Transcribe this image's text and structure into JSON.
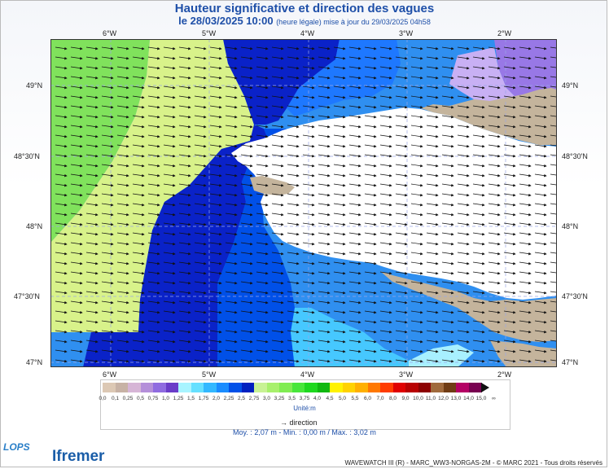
{
  "title": "Hauteur significative et direction des vagues",
  "subtitle": {
    "date": "le 28/03/2025 10:00",
    "note": "(heure légale) mise à jour du 29/03/2025 04h58"
  },
  "map": {
    "lon_ticks": [
      "6°W",
      "5°W",
      "4°W",
      "3°W",
      "2°W"
    ],
    "lat_ticks": [
      "49°N",
      "48°30'N",
      "48°N",
      "47°30'N",
      "47°N"
    ],
    "lon_range": [
      -6.55,
      -1.55
    ],
    "lat_range": [
      46.98,
      49.32
    ],
    "land_color": "#c4b49c",
    "sea_mask_color": "#ffffff",
    "wave_direction": "towards east (slightly south)"
  },
  "legend": {
    "labels": [
      "0,0",
      "0,1",
      "0,25",
      "0,5",
      "0,75",
      "1,0",
      "1,25",
      "1,5",
      "1,75",
      "2,0",
      "2,25",
      "2,5",
      "2,75",
      "3,0",
      "3,25",
      "3,5",
      "3,75",
      "4,0",
      "4,5",
      "5,0",
      "5,5",
      "6,0",
      "7,0",
      "8,0",
      "9,0",
      "10,0",
      "11,0",
      "12,0",
      "13,0",
      "14,0",
      "15,0",
      "∞"
    ],
    "colors": [
      "#dcc8b4",
      "#c7b2a5",
      "#d6b5d6",
      "#b48fd9",
      "#8f6be0",
      "#6a3cc8",
      "#a8f4ff",
      "#66e0ff",
      "#33b8ff",
      "#1a8cff",
      "#0050e8",
      "#0020c0",
      "#c8f294",
      "#a8f06c",
      "#80ec52",
      "#48e63a",
      "#1ed81e",
      "#10b810",
      "#fff200",
      "#ffd200",
      "#ffb000",
      "#ff7800",
      "#ff3c00",
      "#e00000",
      "#b80000",
      "#8c0000",
      "#a06a3c",
      "#703c14",
      "#b40064",
      "#780050"
    ],
    "unit": "Unité:m",
    "direction_label": "direction"
  },
  "stats": "Moy. : 2,07 m   -   Min. : 0,00 m / Max. : 3,02 m",
  "credit": "WAVEWATCH III (R) - MARC_WW3-NORGAS-2M - © MARC 2021 - Tous droits réservés",
  "logos": {
    "lops": "LOPS",
    "ifremer": "Ifremer"
  }
}
